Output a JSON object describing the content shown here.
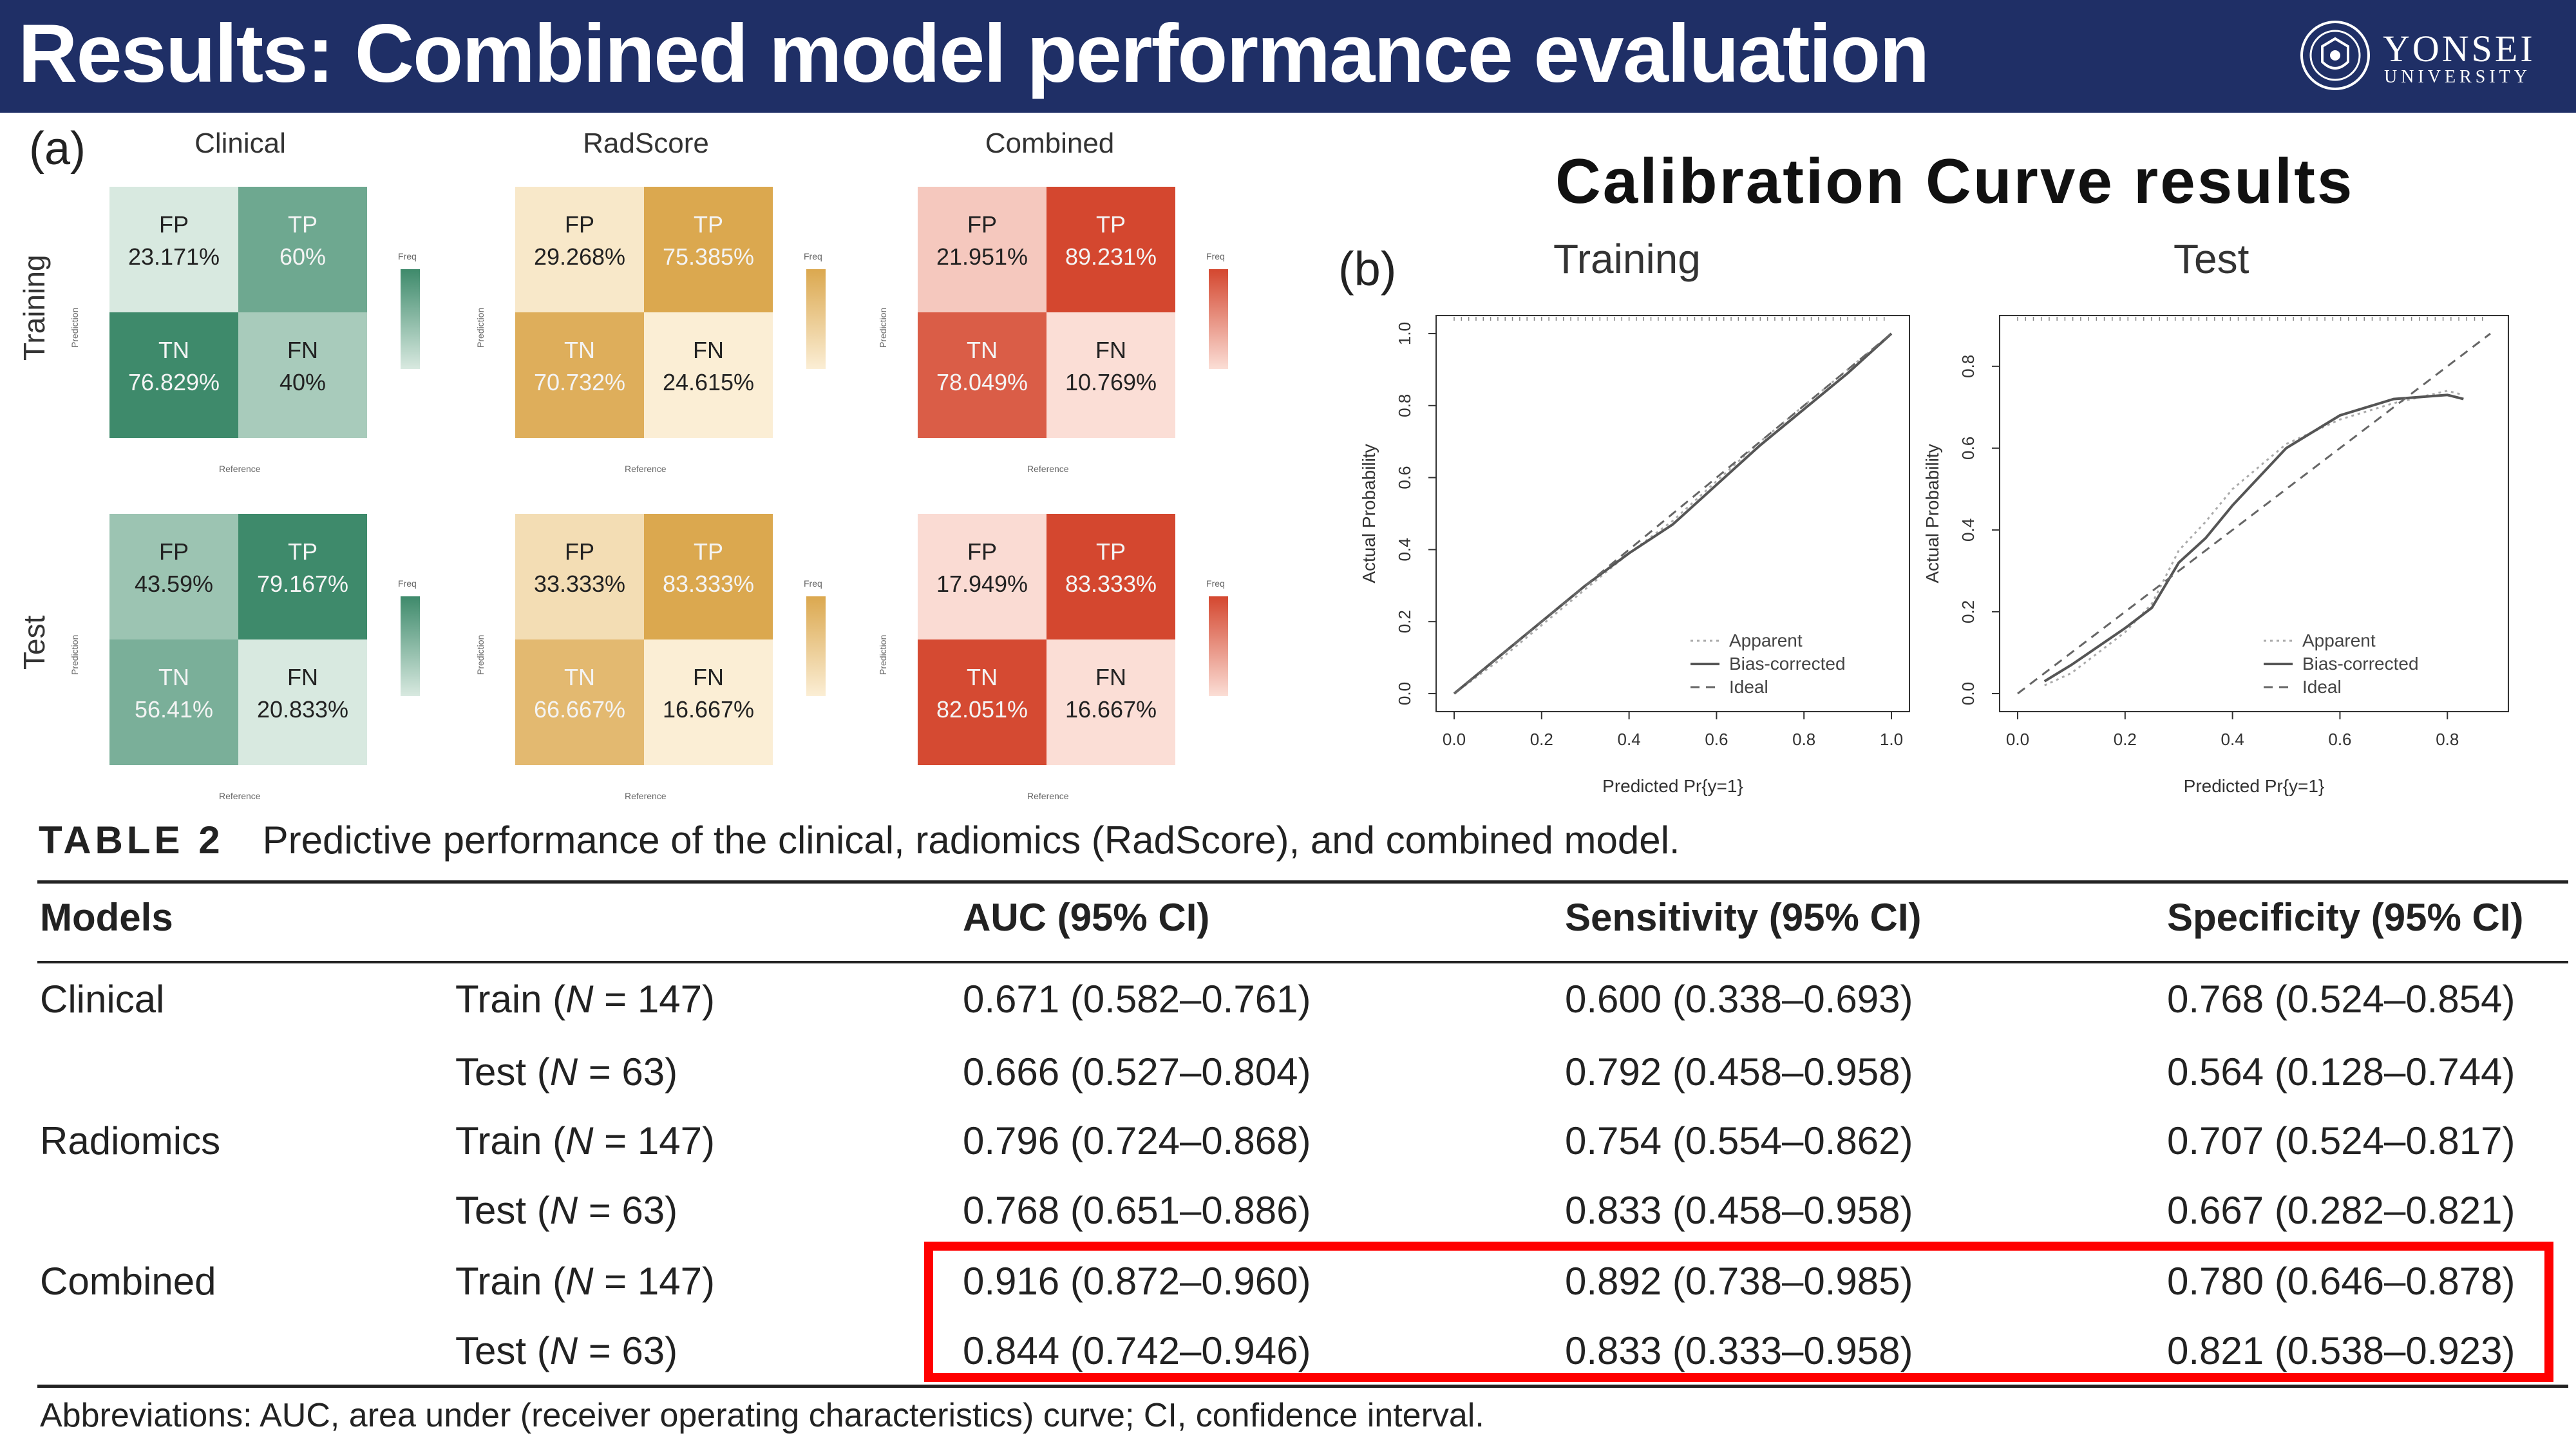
{
  "slide": {
    "title": "Results: Combined model performance evaluation",
    "logo_name": "YONSEI",
    "logo_sub": "UNIVERSITY",
    "header_color": "#1f2f66"
  },
  "confusion": {
    "panel_label": "(a)",
    "columns": [
      "Clinical",
      "RadScore",
      "Combined"
    ],
    "rows": [
      "Training",
      "Test"
    ],
    "prediction_label": "Prediction",
    "reference_label": "Reference",
    "freq_label": "Freq",
    "matrices": [
      {
        "row": "Training",
        "col": "Clinical",
        "fp": "23.171%",
        "tp": "60%",
        "tn": "76.829%",
        "fn": "40%"
      },
      {
        "row": "Training",
        "col": "RadScore",
        "fp": "29.268%",
        "tp": "75.385%",
        "tn": "70.732%",
        "fn": "24.615%"
      },
      {
        "row": "Training",
        "col": "Combined",
        "fp": "21.951%",
        "tp": "89.231%",
        "tn": "78.049%",
        "fn": "10.769%"
      },
      {
        "row": "Test",
        "col": "Clinical",
        "fp": "43.59%",
        "tp": "79.167%",
        "tn": "56.41%",
        "fn": "20.833%"
      },
      {
        "row": "Test",
        "col": "RadScore",
        "fp": "33.333%",
        "tp": "83.333%",
        "tn": "66.667%",
        "fn": "16.667%"
      },
      {
        "row": "Test",
        "col": "Combined",
        "fp": "17.949%",
        "tp": "83.333%",
        "tn": "82.051%",
        "fn": "16.667%"
      }
    ],
    "cell_labels": {
      "fp": "FP",
      "tp": "TP",
      "tn": "TN",
      "fn": "FN"
    },
    "palettes": {
      "Clinical": {
        "high": "#3e8a6b",
        "low": "#d8e9e0"
      },
      "RadScore": {
        "high": "#dba84f",
        "low": "#fbeed5"
      },
      "Combined": {
        "high": "#d4472f",
        "low": "#fbded6"
      }
    }
  },
  "calibration": {
    "heading": "Calibration  Curve  results",
    "panel_label": "(b)",
    "xlabel": "Predicted Pr{y=1}",
    "ylabel": "Actual Probability",
    "legend": [
      "Apparent",
      "Bias-corrected",
      "Ideal"
    ]
  },
  "chart_data": [
    {
      "type": "line",
      "title": "Training",
      "xlabel": "Predicted Pr{y=1}",
      "ylabel": "Actual Probability",
      "xlim": [
        0,
        1.0
      ],
      "ylim": [
        0,
        1.0
      ],
      "xticks": [
        "0.0",
        "0.2",
        "0.4",
        "0.6",
        "0.8",
        "1.0"
      ],
      "yticks": [
        "0.0",
        "0.2",
        "0.4",
        "0.6",
        "0.8",
        "1.0"
      ],
      "series": [
        {
          "name": "Apparent",
          "x": [
            0,
            0.1,
            0.2,
            0.3,
            0.4,
            0.5,
            0.6,
            0.7,
            0.8,
            0.9,
            1.0
          ],
          "y": [
            0,
            0.09,
            0.19,
            0.29,
            0.39,
            0.48,
            0.59,
            0.7,
            0.8,
            0.9,
            1.0
          ]
        },
        {
          "name": "Bias-corrected",
          "x": [
            0,
            0.1,
            0.2,
            0.3,
            0.4,
            0.5,
            0.6,
            0.7,
            0.8,
            0.9,
            1.0
          ],
          "y": [
            0,
            0.1,
            0.2,
            0.3,
            0.39,
            0.47,
            0.58,
            0.69,
            0.79,
            0.89,
            1.0
          ]
        },
        {
          "name": "Ideal",
          "x": [
            0,
            1.0
          ],
          "y": [
            0,
            1.0
          ]
        }
      ]
    },
    {
      "type": "line",
      "title": "Test",
      "xlabel": "Predicted Pr{y=1}",
      "ylabel": "Actual Probability",
      "xlim": [
        0,
        0.88
      ],
      "ylim": [
        0,
        0.88
      ],
      "xticks": [
        "0.0",
        "0.2",
        "0.4",
        "0.6",
        "0.8"
      ],
      "yticks": [
        "0.0",
        "0.2",
        "0.4",
        "0.6",
        "0.8"
      ],
      "series": [
        {
          "name": "Apparent",
          "x": [
            0.05,
            0.1,
            0.2,
            0.25,
            0.3,
            0.35,
            0.4,
            0.5,
            0.6,
            0.7,
            0.8,
            0.83
          ],
          "y": [
            0.02,
            0.05,
            0.15,
            0.22,
            0.35,
            0.42,
            0.5,
            0.61,
            0.67,
            0.71,
            0.74,
            0.73
          ]
        },
        {
          "name": "Bias-corrected",
          "x": [
            0.05,
            0.1,
            0.2,
            0.25,
            0.3,
            0.35,
            0.4,
            0.5,
            0.6,
            0.7,
            0.8,
            0.83
          ],
          "y": [
            0.03,
            0.07,
            0.16,
            0.21,
            0.32,
            0.38,
            0.46,
            0.6,
            0.68,
            0.72,
            0.73,
            0.72
          ]
        },
        {
          "name": "Ideal",
          "x": [
            0,
            0.88
          ],
          "y": [
            0,
            0.88
          ]
        }
      ]
    }
  ],
  "table": {
    "caption_label": "TABLE 2",
    "caption_text": "Predictive performance of the clinical, radiomics (RadScore), and combined model.",
    "headers": [
      "Models",
      "AUC (95% CI)",
      "Sensitivity (95% CI)",
      "Specificity (95% CI)"
    ],
    "rows": [
      {
        "model": "Clinical",
        "set": "Train",
        "n": "147",
        "auc": "0.671 (0.582–0.761)",
        "sens": "0.600 (0.338–0.693)",
        "spec": "0.768 (0.524–0.854)"
      },
      {
        "model": "",
        "set": "Test",
        "n": "63",
        "auc": "0.666 (0.527–0.804)",
        "sens": "0.792 (0.458–0.958)",
        "spec": "0.564 (0.128–0.744)"
      },
      {
        "model": "Radiomics",
        "set": "Train",
        "n": "147",
        "auc": "0.796 (0.724–0.868)",
        "sens": "0.754 (0.554–0.862)",
        "spec": "0.707 (0.524–0.817)"
      },
      {
        "model": "",
        "set": "Test",
        "n": "63",
        "auc": "0.768 (0.651–0.886)",
        "sens": "0.833 (0.458–0.958)",
        "spec": "0.667 (0.282–0.821)"
      },
      {
        "model": "Combined",
        "set": "Train",
        "n": "147",
        "auc": "0.916 (0.872–0.960)",
        "sens": "0.892 (0.738–0.985)",
        "spec": "0.780 (0.646–0.878)"
      },
      {
        "model": "",
        "set": "Test",
        "n": "63",
        "auc": "0.844 (0.742–0.946)",
        "sens": "0.833 (0.333–0.958)",
        "spec": "0.821 (0.538–0.923)"
      }
    ],
    "n_prefix_open": "(",
    "n_symbol": "N",
    "n_eq": " = ",
    "n_close": ")",
    "highlight_color": "#ff0000",
    "abbreviations": "Abbreviations: AUC, area under (receiver operating characteristics) curve; CI, confidence interval."
  }
}
